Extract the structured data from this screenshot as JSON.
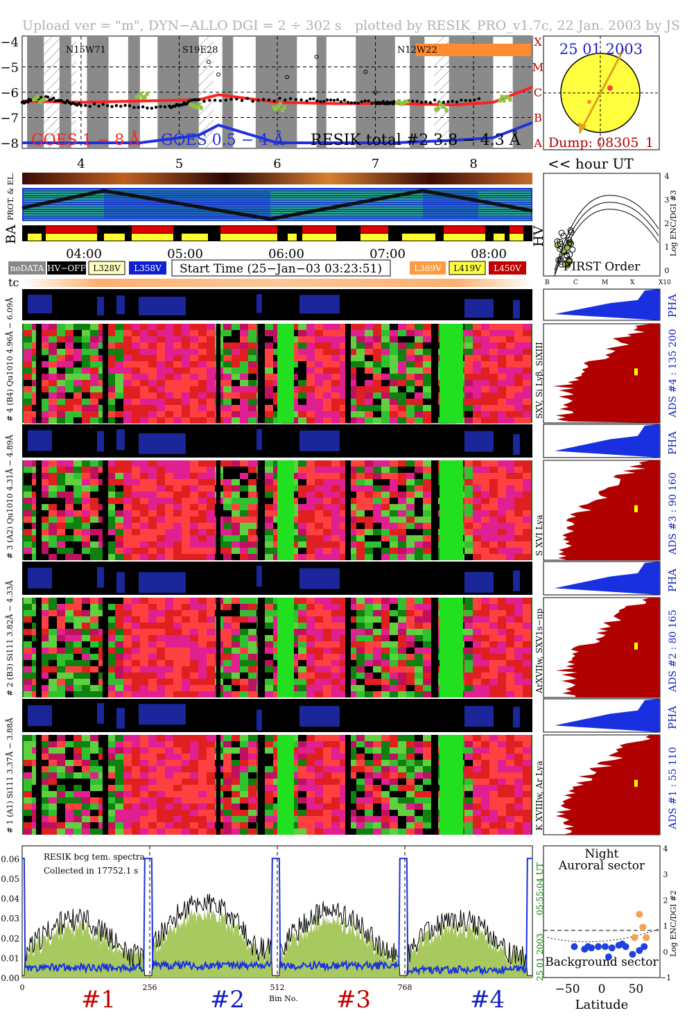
{
  "header": {
    "left": "Upload ver = \"m\", DYN−ALLO DGI =   2 ÷ 302 s",
    "right": "plotted by RESIK_PRO_v1.7c, 22 Jan. 2003 by JS"
  },
  "goes": {
    "y_ticks": [
      "−4",
      "−5",
      "−6",
      "−7",
      "−8"
    ],
    "flare_classes": [
      "X",
      "M",
      "C",
      "B",
      "A"
    ],
    "hour_ticks": [
      "4",
      "5",
      "6",
      "7",
      "8"
    ],
    "hour_label": "<< hour UT",
    "legend_goes_long": "GOES 1 − 8 Å",
    "legend_goes_short": "GOES 0.5 − 4 Å",
    "legend_resik": "RESIK total #2  3.8 − 4.3 Å",
    "regions": [
      "N15W71",
      "S19E28",
      "N12W22"
    ],
    "colors": {
      "long": "#ff2020",
      "short": "#2030e0",
      "resik": "#000000",
      "green": "#90c040"
    }
  },
  "sun": {
    "date": "25 01 2003",
    "dump": "Dump: 08305_1"
  },
  "orbit": {
    "labels": [
      "PROT. & EL.",
      "BA",
      "HV"
    ],
    "time_ticks": [
      "04:00",
      "05:00",
      "06:00",
      "07:00",
      "08:00"
    ]
  },
  "legend_bar": {
    "nodata": "noDATA",
    "hvoff": "HV−OFF",
    "l328": "L328V",
    "l358": "L358V",
    "start": "Start Time (25−Jan−03 03:23:51)",
    "l389": "L389V",
    "l419": "L419V",
    "l450": "L450V",
    "tc": "tc"
  },
  "first_order": {
    "title": "FIRST Order",
    "ylabel": "Log ENC/DGI #3",
    "y_ticks": [
      "4",
      "3",
      "2",
      "1",
      "0"
    ],
    "x_ticks": [
      "B",
      "C",
      "M",
      "X",
      "X10"
    ]
  },
  "channels": [
    {
      "pha_label": "# 4 (B4) Qu1010 4.96Å − 6.09Å",
      "main_label": "SXV, Si Lyβ, SiXIII",
      "ads": "ADS #4 :   135 200",
      "pha": "PHA"
    },
    {
      "pha_label": "# 3 (A2) Qu1010 4.31Å − 4.89Å",
      "main_label": "S XVI Lya",
      "ads": "ADS #3 :   90 160",
      "pha": "PHA"
    },
    {
      "pha_label": "# 2 (B3) Si111 3.82Å − 4.33Å",
      "main_label": "ArXVIIw, SXV1s−np",
      "ads": "ADS #2 :   80 165",
      "pha": "PHA"
    },
    {
      "pha_label": "# 1 (A1) Si111 3.37Å − 3.88Å",
      "main_label": "K XVIIIw, Ar Lya",
      "ads": "ADS #1 :   55 110",
      "pha": "PHA"
    }
  ],
  "spectrum": {
    "y_ticks": [
      "0.06",
      "0.05",
      "0.04",
      "0.03",
      "0.02",
      "0.01",
      "0.00"
    ],
    "x_ticks": [
      "0",
      "256",
      "512",
      "768"
    ],
    "xlabel": "Bin No.",
    "annot1": "RESIK bcg tem. spectra",
    "annot2": "Collected in 17752.1 s",
    "right_time": "05:55:04 UT",
    "right_date": "25 01 2003",
    "segments": [
      "#1",
      "#2",
      "#3",
      "#4"
    ]
  },
  "latitude": {
    "title1": "Night",
    "title2": "Auroral sector",
    "bottom": "Background sector",
    "xlabel": "Latitude",
    "ylabel": "Log ENC/DGI #2",
    "x_ticks": [
      "−50",
      "0",
      "50"
    ],
    "y_ticks": [
      "4",
      "3",
      "2",
      "1",
      "0",
      "−1"
    ]
  },
  "chart_data": [
    {
      "type": "line",
      "title": "",
      "ylabel": "",
      "xlabel": "<< hour UT",
      "x_range_hours": [
        3.4,
        8.6
      ],
      "ylim": [
        -8,
        -4
      ],
      "series": [
        {
          "name": "GOES 1 − 8 Å",
          "x": [
            3.4,
            4.0,
            4.6,
            5.2,
            5.4,
            6.0,
            6.6,
            7.2,
            7.8,
            8.2,
            8.6
          ],
          "values": [
            -6.35,
            -6.4,
            -6.35,
            -6.3,
            -6.1,
            -6.4,
            -6.45,
            -6.45,
            -6.5,
            -6.4,
            -5.8
          ]
        },
        {
          "name": "GOES 0.5 − 4 Å",
          "x": [
            3.4,
            4.0,
            4.6,
            5.2,
            5.4,
            6.0,
            6.6,
            7.2,
            7.8,
            8.2,
            8.6
          ],
          "values": [
            -8.0,
            -8.0,
            -8.0,
            -7.7,
            -7.3,
            -8.0,
            -8.0,
            -8.0,
            -7.9,
            -7.8,
            -7.2
          ]
        },
        {
          "name": "RESIK total #2  3.8 − 4.3 Å",
          "x": [
            3.4,
            3.6,
            4.0,
            4.9,
            5.2,
            6.3,
            7.0,
            7.2,
            8.1
          ],
          "values": [
            -6.4,
            -6.2,
            -6.5,
            -6.6,
            -6.3,
            -6.3,
            -6.4,
            -6.4,
            -6.3
          ]
        }
      ]
    },
    {
      "type": "line",
      "title": "",
      "xlabel": "Bin No.",
      "ylabel": "",
      "xlim": [
        0,
        1024
      ],
      "ylim": [
        0,
        0.065
      ],
      "series": [
        {
          "name": "",
          "mean_levels": [
            0.02,
            0.026,
            0.023,
            0.02
          ],
          "segment_bounds": [
            0,
            256,
            512,
            768,
            1024
          ]
        },
        {
          "name": "",
          "mean_levels": [
            0.005,
            0.006,
            0.006,
            0.004
          ]
        }
      ]
    },
    {
      "type": "scatter",
      "title": "",
      "xlabel": "Latitude",
      "ylabel": "Log ENC/DGI #2",
      "xlim": [
        -85,
        85
      ],
      "ylim": [
        -1,
        4
      ],
      "series": [
        {
          "name": "",
          "x": [
            -40,
            -25,
            -20,
            -15,
            -5,
            5,
            15,
            25,
            35,
            45,
            55,
            62,
            10,
            30
          ],
          "values": [
            0.2,
            0.1,
            0.2,
            0.15,
            0.2,
            0.2,
            0.15,
            0.25,
            0.2,
            -0.1,
            0.05,
            0.2,
            -0.2,
            0.3
          ]
        },
        {
          "name": "",
          "x": [
            55,
            60,
            65,
            48
          ],
          "values": [
            1.45,
            0.95,
            0.55,
            0.55
          ]
        }
      ]
    }
  ]
}
